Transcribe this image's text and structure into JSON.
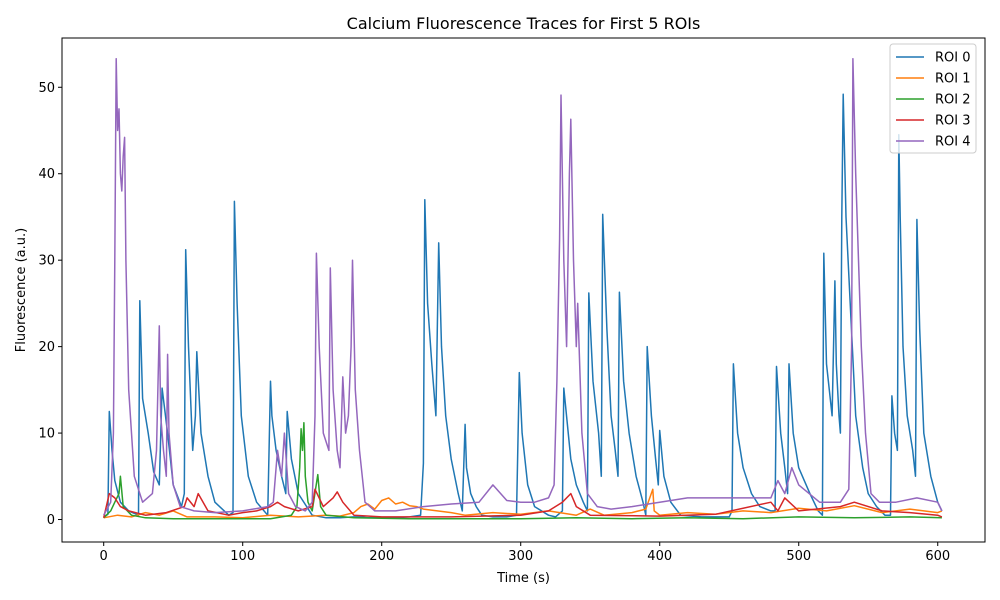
{
  "chart_data": {
    "type": "line",
    "title": "Calcium Fluorescence Traces for First 5 ROIs",
    "xlabel": "Time (s)",
    "ylabel": "Fluorescence (a.u.)",
    "xlim": [
      -30,
      634
    ],
    "ylim": [
      -2.6,
      55.7
    ],
    "xticks": [
      0,
      100,
      200,
      300,
      400,
      500,
      600
    ],
    "yticks": [
      0,
      10,
      20,
      30,
      40,
      50
    ],
    "grid": false,
    "legend_position": "upper right",
    "series": [
      {
        "name": "ROI 0",
        "color": "#1f77b4",
        "x": [
          0,
          3,
          4,
          6,
          8,
          12,
          18,
          25,
          26,
          28,
          32,
          36,
          40,
          42,
          46,
          50,
          56,
          58,
          59,
          61,
          64,
          66,
          67,
          70,
          75,
          80,
          90,
          93,
          94,
          96,
          99,
          104,
          110,
          118,
          120,
          121,
          124,
          128,
          131,
          132,
          135,
          140,
          150,
          160,
          170,
          180,
          185,
          190,
          200,
          210,
          220,
          228,
          230,
          231,
          233,
          236,
          239,
          241,
          243,
          246,
          250,
          255,
          258,
          260,
          261,
          264,
          268,
          272,
          280,
          290,
          297,
          299,
          301,
          305,
          310,
          320,
          325,
          330,
          331,
          336,
          340,
          345,
          348,
          349,
          352,
          356,
          358,
          359,
          362,
          365,
          368,
          370,
          371,
          374,
          378,
          383,
          388,
          390,
          391,
          394,
          397,
          399,
          400,
          403,
          408,
          415,
          430,
          450,
          452,
          453,
          456,
          460,
          466,
          472,
          480,
          483,
          484,
          487,
          490,
          492,
          493,
          496,
          500,
          508,
          514,
          517,
          518,
          520,
          522,
          524,
          526,
          527,
          529,
          530,
          531,
          532,
          534,
          537,
          541,
          546,
          550,
          556,
          562,
          566,
          567,
          569,
          571,
          572,
          573,
          575,
          578,
          582,
          584,
          585,
          587,
          590,
          595,
          600,
          603
        ],
        "y": [
          0.3,
          0.6,
          12.5,
          8.0,
          4.5,
          2.0,
          1.0,
          0.5,
          25.3,
          14.0,
          10.0,
          5.5,
          4.0,
          15.2,
          10.0,
          4.0,
          1.5,
          3.0,
          31.2,
          20.0,
          8.0,
          12.0,
          19.4,
          10.0,
          5.0,
          2.0,
          0.5,
          0.8,
          36.8,
          25.0,
          12.0,
          5.0,
          2.0,
          0.5,
          16.0,
          12.0,
          8.0,
          5.0,
          3.0,
          12.5,
          7.0,
          3.0,
          0.5,
          0.2,
          0.2,
          0.3,
          0.3,
          0.2,
          0.2,
          0.2,
          0.3,
          0.5,
          6.5,
          37.0,
          25.0,
          18.0,
          12.0,
          32.0,
          20.0,
          12.0,
          7.0,
          3.0,
          1.0,
          11.0,
          6.0,
          3.0,
          1.5,
          0.5,
          0.3,
          0.3,
          0.5,
          17.0,
          10.0,
          4.0,
          1.5,
          0.5,
          0.3,
          1.0,
          15.2,
          7.0,
          4.0,
          2.0,
          1.0,
          26.2,
          16.0,
          10.0,
          5.0,
          35.3,
          22.0,
          12.0,
          8.0,
          5.0,
          26.3,
          16.0,
          10.0,
          5.0,
          2.0,
          0.5,
          20.0,
          12.0,
          7.0,
          4.0,
          10.3,
          5.0,
          2.0,
          0.5,
          0.3,
          0.3,
          1.0,
          18.0,
          10.0,
          6.0,
          3.0,
          1.5,
          1.0,
          1.0,
          17.7,
          10.0,
          6.0,
          3.0,
          18.0,
          10.0,
          6.0,
          3.0,
          1.0,
          0.5,
          30.8,
          18.0,
          15.0,
          12.0,
          27.6,
          18.0,
          12.0,
          10.0,
          35.0,
          49.2,
          35.0,
          25.0,
          12.0,
          6.0,
          3.0,
          1.5,
          0.5,
          0.5,
          14.3,
          10.0,
          8.0,
          44.5,
          35.0,
          20.0,
          12.0,
          8.0,
          5.0,
          34.7,
          22.0,
          10.0,
          5.0,
          2.0,
          1.0
        ]
      },
      {
        "name": "ROI 1",
        "color": "#ff7f0e",
        "x": [
          0,
          10,
          20,
          30,
          40,
          50,
          60,
          80,
          100,
          120,
          140,
          160,
          170,
          180,
          185,
          190,
          195,
          200,
          205,
          210,
          215,
          220,
          225,
          230,
          240,
          250,
          260,
          280,
          300,
          320,
          340,
          350,
          360,
          380,
          390,
          395,
          396,
          400,
          420,
          440,
          460,
          480,
          500,
          520,
          540,
          560,
          580,
          600,
          603
        ],
        "y": [
          0.2,
          0.5,
          0.3,
          0.8,
          0.5,
          1.0,
          0.3,
          0.3,
          0.2,
          0.5,
          0.3,
          0.5,
          0.4,
          0.8,
          1.5,
          1.8,
          1.2,
          2.2,
          2.5,
          1.8,
          2.0,
          1.6,
          1.5,
          1.2,
          1.0,
          0.8,
          0.5,
          0.8,
          0.6,
          1.0,
          0.5,
          1.2,
          0.5,
          0.8,
          1.2,
          3.5,
          1.0,
          0.5,
          0.8,
          0.6,
          1.0,
          0.8,
          1.3,
          1.0,
          1.6,
          0.8,
          1.2,
          0.8,
          1.0
        ]
      },
      {
        "name": "ROI 2",
        "color": "#2ca02c",
        "x": [
          0,
          5,
          8,
          11,
          12,
          14,
          20,
          30,
          50,
          80,
          120,
          135,
          139,
          141,
          142,
          143,
          144,
          145,
          147,
          150,
          154,
          156,
          160,
          180,
          220,
          260,
          300,
          340,
          380,
          420,
          460,
          500,
          540,
          580,
          603
        ],
        "y": [
          0.2,
          1.0,
          2.0,
          3.0,
          5.0,
          1.5,
          0.5,
          0.2,
          0.1,
          0.1,
          0.1,
          0.5,
          1.5,
          6.0,
          10.5,
          8.0,
          11.2,
          5.0,
          2.0,
          1.0,
          5.2,
          1.5,
          0.5,
          0.2,
          0.1,
          0.1,
          0.1,
          0.2,
          0.1,
          0.2,
          0.1,
          0.3,
          0.2,
          0.3,
          0.2
        ]
      },
      {
        "name": "ROI 3",
        "color": "#d62728",
        "x": [
          0,
          4,
          8,
          12,
          18,
          30,
          45,
          58,
          60,
          65,
          68,
          75,
          90,
          100,
          110,
          120,
          125,
          130,
          140,
          150,
          152,
          158,
          165,
          168,
          172,
          180,
          200,
          250,
          300,
          320,
          330,
          336,
          340,
          350,
          400,
          440,
          480,
          485,
          490,
          500,
          530,
          540,
          560,
          580,
          600,
          603
        ],
        "y": [
          0.2,
          3.0,
          2.5,
          1.5,
          1.0,
          0.5,
          0.8,
          1.5,
          2.5,
          1.5,
          3.0,
          1.0,
          0.5,
          0.8,
          1.0,
          1.5,
          2.0,
          1.5,
          1.0,
          1.5,
          3.5,
          1.5,
          2.5,
          3.2,
          2.0,
          0.5,
          0.3,
          0.3,
          0.5,
          1.0,
          2.0,
          3.0,
          1.5,
          0.5,
          0.4,
          0.6,
          2.0,
          1.0,
          2.5,
          1.0,
          1.5,
          2.0,
          1.0,
          0.8,
          0.5,
          0.3
        ]
      },
      {
        "name": "ROI 4",
        "color": "#9467bd",
        "x": [
          0,
          5,
          7,
          8,
          9,
          10,
          11,
          12,
          13,
          14,
          15,
          16,
          18,
          22,
          28,
          35,
          38,
          40,
          41,
          43,
          45,
          46,
          47,
          50,
          55,
          65,
          80,
          100,
          118,
          122,
          125,
          128,
          130,
          133,
          138,
          145,
          150,
          152,
          153,
          155,
          158,
          162,
          163,
          165,
          168,
          170,
          172,
          174,
          176,
          178,
          179,
          181,
          184,
          188,
          195,
          210,
          230,
          250,
          270,
          280,
          290,
          300,
          310,
          320,
          324,
          326,
          328,
          329,
          331,
          333,
          335,
          336,
          338,
          340,
          341,
          344,
          348,
          355,
          365,
          380,
          400,
          420,
          440,
          460,
          480,
          485,
          490,
          495,
          500,
          515,
          530,
          536,
          538,
          539,
          541,
          543,
          545,
          548,
          552,
          558,
          570,
          585,
          600,
          603
        ],
        "y": [
          0.5,
          2.0,
          10.0,
          30.0,
          53.3,
          45.0,
          47.5,
          40.0,
          38.0,
          42.0,
          44.2,
          30.0,
          15.0,
          5.0,
          2.0,
          3.0,
          8.0,
          22.4,
          12.0,
          8.0,
          5.0,
          19.1,
          10.0,
          4.0,
          1.5,
          1.0,
          0.8,
          1.0,
          1.5,
          2.0,
          8.0,
          5.0,
          10.0,
          3.0,
          1.5,
          1.0,
          2.0,
          12.0,
          30.8,
          20.0,
          10.0,
          8.0,
          29.1,
          15.0,
          8.0,
          6.0,
          16.5,
          10.0,
          12.0,
          20.0,
          30.0,
          15.0,
          8.0,
          2.0,
          1.0,
          1.0,
          1.5,
          1.8,
          2.0,
          4.0,
          2.2,
          2.0,
          2.0,
          2.5,
          4.0,
          16.0,
          32.5,
          49.1,
          30.0,
          20.0,
          40.0,
          46.3,
          30.0,
          20.0,
          25.0,
          10.0,
          3.0,
          1.5,
          1.2,
          1.5,
          2.0,
          2.5,
          2.5,
          2.5,
          2.5,
          4.5,
          3.0,
          6.0,
          4.0,
          2.0,
          2.0,
          3.5,
          20.0,
          53.3,
          40.0,
          30.0,
          20.0,
          10.0,
          3.0,
          2.0,
          2.0,
          2.5,
          2.0,
          1.0
        ]
      }
    ]
  }
}
